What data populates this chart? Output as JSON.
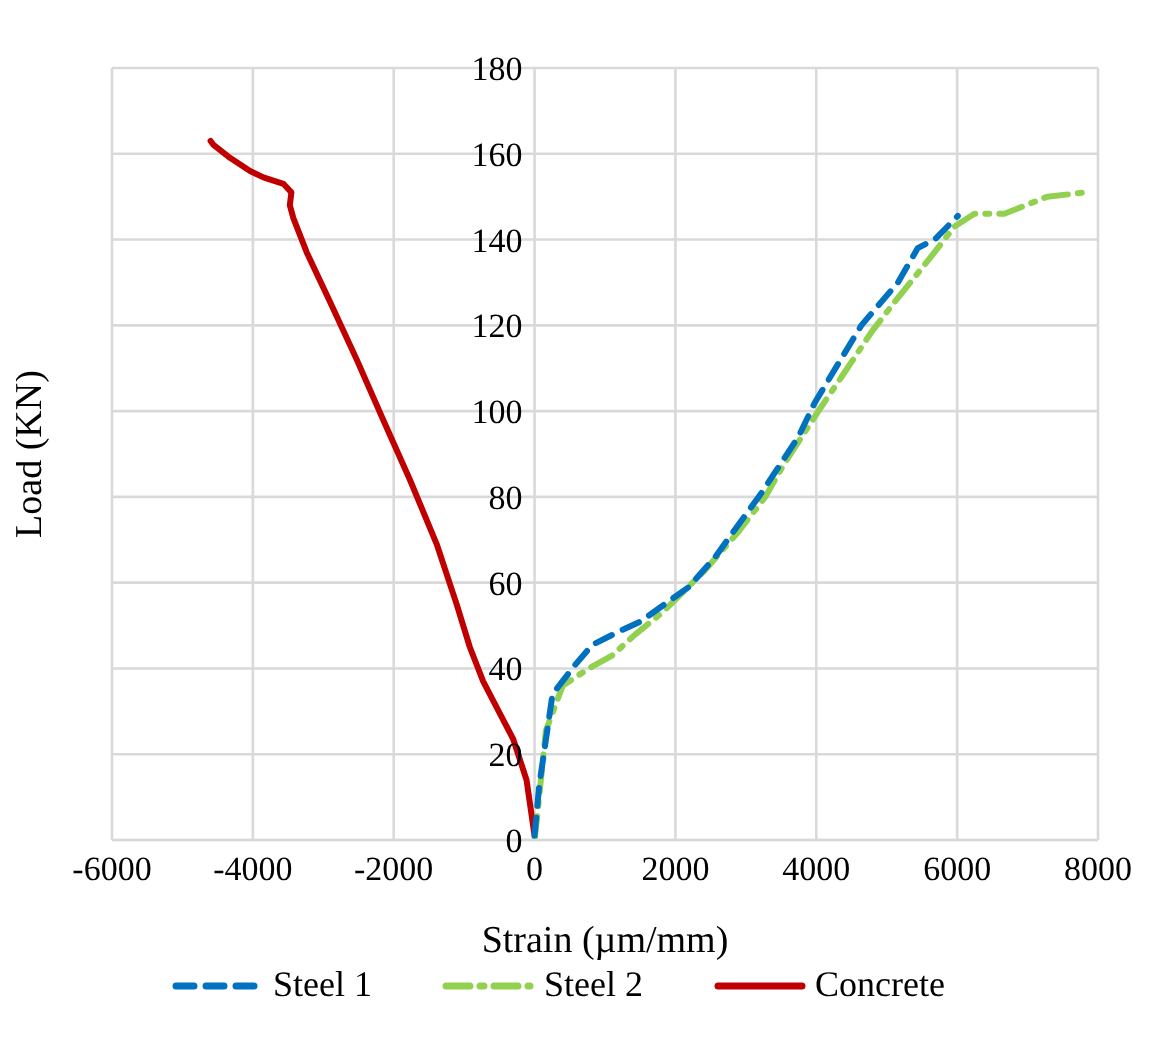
{
  "chart_data": {
    "type": "line",
    "xlabel": "Strain (µm/mm)",
    "ylabel": "Load (KN)",
    "xlim": [
      -6000,
      8000
    ],
    "xticks": [
      -6000,
      -4000,
      -2000,
      0,
      2000,
      4000,
      6000,
      8000
    ],
    "ylim": [
      0,
      180
    ],
    "yticks": [
      0,
      20,
      40,
      60,
      80,
      100,
      120,
      140,
      160,
      180
    ],
    "grid": true,
    "legend": "bottom",
    "marker": "none",
    "series": [
      {
        "name": "Steel 1",
        "color": "#0070c0",
        "line_style": "dashed",
        "x": [
          0,
          66,
          255,
          585,
          820,
          1245,
          1510,
          2190,
          2565,
          3225,
          3745,
          3980,
          4640,
          5160,
          5440,
          5680,
          6010
        ],
        "values": [
          1,
          12.7,
          34,
          41,
          45.5,
          49,
          51,
          59,
          66,
          81,
          94,
          102,
          120,
          130,
          138,
          140,
          145.5
        ]
      },
      {
        "name": "Steel 2",
        "color": "#92d050",
        "line_style": "dashdot",
        "x": [
          0,
          47,
          160,
          400,
          770,
          1100,
          1435,
          1810,
          2425,
          2900,
          3275,
          3555,
          4030,
          4360,
          4790,
          5115,
          5630,
          5960,
          6245,
          6670,
          7280,
          7830
        ],
        "values": [
          0,
          7,
          25.5,
          36,
          40,
          43,
          48,
          53,
          63,
          72,
          80,
          88,
          100,
          108,
          118.6,
          125.5,
          136,
          143,
          146,
          146,
          150,
          151
        ]
      },
      {
        "name": "Concrete",
        "color": "#c00000",
        "line_style": "solid",
        "x": [
          0,
          -114,
          -303,
          -540,
          -730,
          -920,
          -1107,
          -1390,
          -1770,
          -2150,
          -2525,
          -2905,
          -3235,
          -3425,
          -3475,
          -3453,
          -3567,
          -3850,
          -4040,
          -4320,
          -4555,
          -4600
        ],
        "values": [
          1,
          14,
          23.5,
          31,
          37,
          45,
          55,
          69,
          84,
          98,
          112,
          125.5,
          137,
          145,
          148,
          151,
          153,
          154.5,
          156,
          159,
          162,
          163
        ]
      }
    ]
  }
}
